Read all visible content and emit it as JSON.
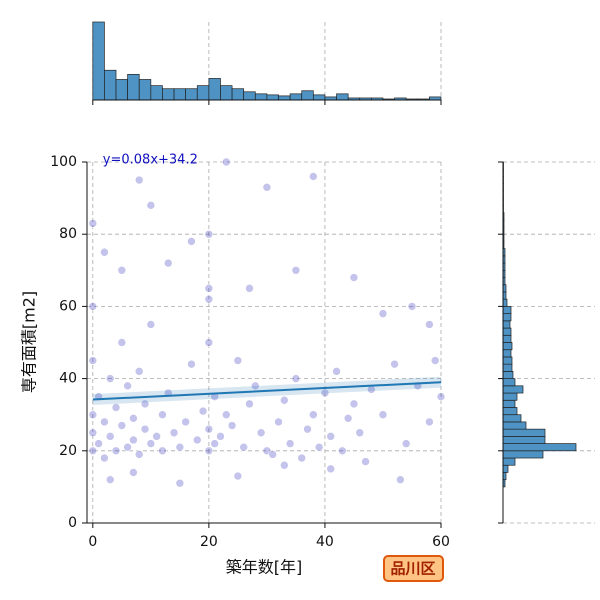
{
  "chart_data": [
    {
      "type": "scatter",
      "xlabel": "築年数[年]",
      "ylabel": "専有面積[m2]",
      "color": "#2828b8",
      "xlim": [
        -1,
        60
      ],
      "xticks": [
        0,
        20,
        40,
        60
      ],
      "ylim": [
        0,
        100
      ],
      "yticks": [
        0,
        20,
        40,
        60,
        80,
        100
      ],
      "grid": true,
      "x": [
        0,
        0,
        0,
        0,
        0,
        1,
        1,
        2,
        2,
        3,
        3,
        4,
        4,
        5,
        5,
        6,
        6,
        7,
        7,
        8,
        8,
        9,
        9,
        10,
        10,
        11,
        12,
        12,
        13,
        14,
        15,
        16,
        17,
        18,
        19,
        20,
        20,
        20,
        20,
        21,
        21,
        22,
        23,
        24,
        25,
        26,
        27,
        28,
        29,
        30,
        31,
        32,
        33,
        34,
        35,
        36,
        37,
        38,
        39,
        40,
        41,
        42,
        43,
        44,
        45,
        46,
        48,
        50,
        52,
        54,
        56,
        58,
        59,
        60,
        0,
        2,
        5,
        8,
        10,
        13,
        17,
        20,
        20,
        23,
        27,
        30,
        35,
        38,
        45,
        50,
        55,
        58,
        3,
        7,
        15,
        25,
        33,
        41,
        47,
        53
      ],
      "y": [
        20,
        25,
        30,
        45,
        60,
        22,
        35,
        18,
        28,
        40,
        24,
        20,
        32,
        27,
        50,
        21,
        38,
        23,
        29,
        19,
        42,
        26,
        33,
        22,
        55,
        24,
        20,
        30,
        36,
        25,
        21,
        28,
        44,
        23,
        31,
        20,
        26,
        50,
        65,
        22,
        35,
        24,
        30,
        27,
        45,
        21,
        33,
        38,
        25,
        20,
        19,
        28,
        34,
        22,
        40,
        18,
        26,
        30,
        21,
        36,
        24,
        42,
        20,
        29,
        33,
        25,
        37,
        30,
        44,
        22,
        38,
        28,
        45,
        35,
        83,
        75,
        70,
        95,
        88,
        72,
        78,
        80,
        62,
        100,
        65,
        93,
        70,
        96,
        68,
        58,
        60,
        55,
        12,
        14,
        11,
        13,
        16,
        15,
        17,
        12
      ],
      "regression": {
        "slope": 0.08,
        "intercept": 34.2,
        "label": "y=0.08x+34.2",
        "color": "#1f77b4"
      },
      "badge": "品川区"
    },
    {
      "type": "histogram",
      "orientation": "vertical",
      "color": "#4e93c3",
      "bins": [
        0,
        2,
        4,
        6,
        8,
        10,
        12,
        14,
        16,
        18,
        20,
        22,
        24,
        26,
        28,
        30,
        32,
        34,
        36,
        38,
        40,
        42,
        44,
        46,
        48,
        50,
        52,
        54,
        56,
        58,
        60
      ],
      "values": [
        760,
        290,
        200,
        250,
        200,
        140,
        110,
        110,
        110,
        140,
        210,
        140,
        110,
        80,
        60,
        50,
        40,
        60,
        90,
        50,
        30,
        60,
        20,
        20,
        20,
        10,
        20,
        10,
        10,
        30
      ]
    },
    {
      "type": "histogram",
      "orientation": "horizontal",
      "color": "#4e93c3",
      "bins": [
        0,
        2,
        4,
        6,
        8,
        10,
        12,
        14,
        16,
        18,
        20,
        22,
        24,
        26,
        28,
        30,
        32,
        34,
        36,
        38,
        40,
        42,
        44,
        46,
        48,
        50,
        52,
        54,
        56,
        58,
        60,
        62,
        64,
        66,
        68,
        70,
        72,
        74,
        76,
        78,
        80,
        82,
        84,
        86,
        88,
        90,
        92,
        94,
        96,
        98,
        100
      ],
      "values": [
        0,
        0,
        0,
        0,
        0,
        20,
        30,
        50,
        120,
        400,
        730,
        420,
        420,
        230,
        180,
        140,
        120,
        140,
        200,
        120,
        100,
        90,
        90,
        80,
        90,
        80,
        80,
        70,
        80,
        80,
        40,
        30,
        30,
        20,
        20,
        20,
        20,
        20,
        10,
        10,
        10,
        10,
        10,
        5,
        5,
        5,
        5,
        5,
        5,
        5
      ]
    }
  ]
}
